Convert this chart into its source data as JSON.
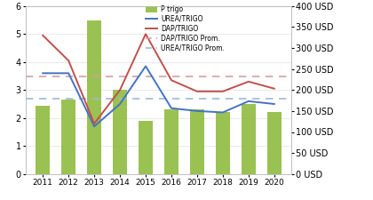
{
  "years": [
    2011,
    2012,
    2013,
    2014,
    2015,
    2016,
    2017,
    2018,
    2019,
    2020
  ],
  "p_trigo": [
    2.45,
    2.65,
    5.5,
    3.0,
    1.9,
    2.3,
    2.3,
    2.2,
    2.5,
    2.2
  ],
  "urea_trigo": [
    3.6,
    3.6,
    1.7,
    2.5,
    3.85,
    2.35,
    2.25,
    2.2,
    2.6,
    2.5
  ],
  "dap_trigo": [
    4.95,
    4.05,
    1.8,
    3.0,
    5.0,
    3.35,
    2.95,
    2.95,
    3.3,
    3.05
  ],
  "dap_prom": 3.5,
  "urea_prom": 2.68,
  "bar_color": "#8fbc3f",
  "urea_color": "#4472c4",
  "dap_color": "#c0504d",
  "dap_prom_color": "#d4a0a0",
  "urea_prom_color": "#a0b8d4",
  "ylim_left": [
    0,
    6
  ],
  "ylim_right": [
    0,
    400
  ],
  "left_ticks": [
    0,
    1,
    2,
    3,
    4,
    5,
    6
  ],
  "right_ticks": [
    0,
    50,
    100,
    150,
    200,
    250,
    300,
    350,
    400
  ],
  "right_labels": [
    "0 USD",
    "50 USD",
    "100 USD",
    "150 USD",
    "200 USD",
    "250 USD",
    "300 USD",
    "350 USD",
    "400 USD"
  ]
}
